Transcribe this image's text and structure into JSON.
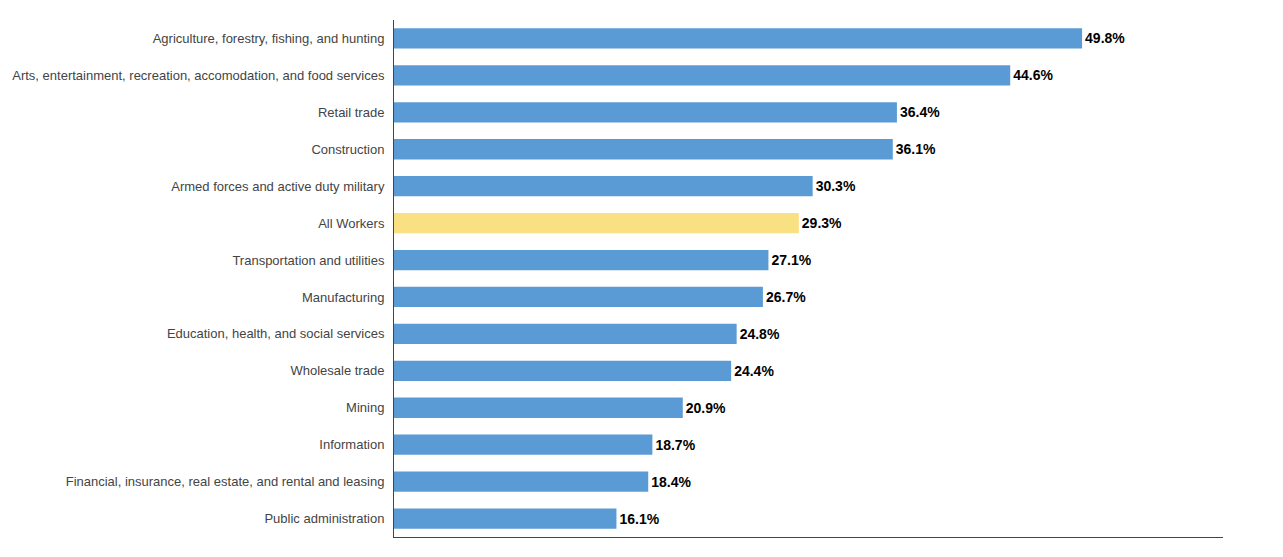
{
  "chart_data": {
    "type": "bar",
    "orientation": "horizontal",
    "categories": [
      "Public administration",
      "Financial, insurance, real estate, and rental and leasing",
      "Information",
      "Mining",
      "Wholesale trade",
      "Education, health, and social services",
      "Manufacturing",
      "Transportation and utilities",
      "All Workers",
      "Armed forces and active duty military",
      "Construction",
      "Retail trade",
      "Arts, entertainment, recreation, accomodation, and food services",
      "Agriculture, forestry, fishing, and hunting"
    ],
    "values": [
      16.1,
      18.4,
      18.7,
      20.9,
      24.4,
      24.8,
      26.7,
      27.1,
      29.3,
      30.3,
      36.1,
      36.4,
      44.6,
      49.8
    ],
    "value_labels": [
      "16.1%",
      "18.4%",
      "18.7%",
      "20.9%",
      "24.4%",
      "24.8%",
      "26.7%",
      "27.1%",
      "29.3%",
      "30.3%",
      "36.1%",
      "36.4%",
      "44.6%",
      "49.8%"
    ],
    "colors": [
      "#5B9BD5",
      "#5B9BD5",
      "#5B9BD5",
      "#5B9BD5",
      "#5B9BD5",
      "#5B9BD5",
      "#5B9BD5",
      "#5B9BD5",
      "#F9E083",
      "#5B9BD5",
      "#5B9BD5",
      "#5B9BD5",
      "#5B9BD5",
      "#5B9BD5"
    ],
    "xlim": [
      0,
      60
    ],
    "grid": false,
    "data_labels": true,
    "tick_labels": "y"
  }
}
